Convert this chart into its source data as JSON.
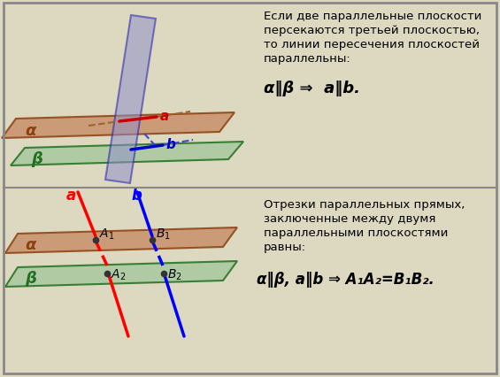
{
  "bg_color": "#ddd8c0",
  "border_color": "#888888",
  "divider_color": "#888888",
  "panel1": {
    "alpha_plane_color": "#c8906a",
    "alpha_plane_edge": "#8B4010",
    "beta_plane_color": "#a8c8a0",
    "beta_plane_edge": "#207020",
    "cutting_plane_color": "#9090c8",
    "cutting_plane_edge": "#2020aa",
    "line_a_color": "#cc0000",
    "line_b_color": "#0000cc",
    "dashed_color_brown": "#996633",
    "dashed_color_blue": "#4444cc",
    "alpha_label": "α",
    "beta_label": "β",
    "a_label": "a",
    "b_label": "b",
    "text1": "Если две параллельные плоскости",
    "text2": "персекаются третьей плоскостью,",
    "text3": "то линии пересечения плоскостей",
    "text4": "параллельны:",
    "formula": "α‖β ⇒  a‖b."
  },
  "panel2": {
    "alpha_plane_color": "#c8906a",
    "alpha_plane_edge": "#8B4010",
    "beta_plane_color": "#a8c8a0",
    "beta_plane_edge": "#207020",
    "line_a_color": "#ff0000",
    "line_b_color": "#0000ff",
    "alpha_label": "α",
    "beta_label": "β",
    "a_label": "a",
    "b_label": "b",
    "text1": "Отрезки параллельных прямых,",
    "text2": "заключенные между двумя",
    "text3": "параллельными плоскостями",
    "text4": "равны:",
    "formula": "α‖β, a‖b ⇒ A₁A₂=B₁B₂."
  }
}
